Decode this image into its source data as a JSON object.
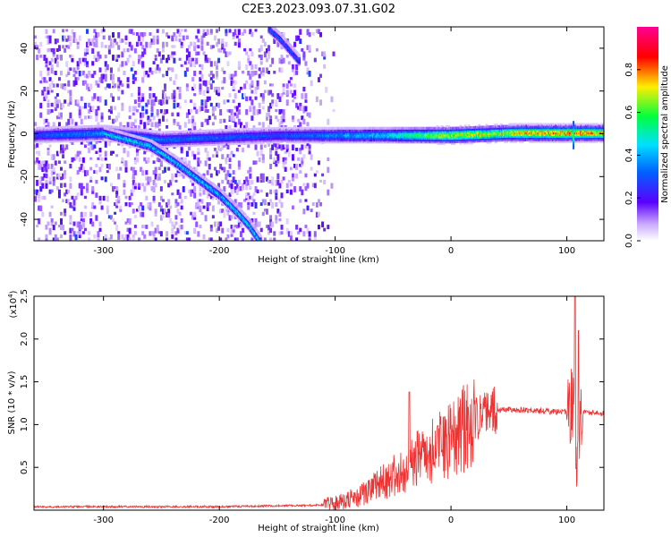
{
  "figure_title": "C2E3.2023.093.07.31.G02",
  "chart_data": [
    {
      "type": "heatmap",
      "title": "C2E3.2023.093.07.31.G02",
      "xlabel": "Height of straight line (km)",
      "ylabel": "Frequency (Hz)",
      "xlim": [
        -360,
        132
      ],
      "ylim": [
        -50,
        50
      ],
      "x_ticks": [
        -300,
        -200,
        -100,
        0,
        100
      ],
      "x_tick_labels": [
        "-300",
        "-200",
        "-100",
        "0",
        "100"
      ],
      "y_ticks": [
        -40,
        -20,
        0,
        20,
        40
      ],
      "y_tick_labels": [
        "-40",
        "-20",
        "0",
        "20",
        "40"
      ],
      "colorbar": {
        "label": "Normalized spectral amplitude",
        "range": [
          0,
          1
        ],
        "ticks": [
          0,
          0.2,
          0.4,
          0.6,
          0.8
        ],
        "tick_labels": [
          "0.0",
          "0.2",
          "0.4",
          "0.6",
          "0.8"
        ],
        "colormap": [
          "#ffffff",
          "#5a00ff",
          "#00c8ff",
          "#00ff40",
          "#ffee00",
          "#ff0000",
          "#ff00aa"
        ]
      },
      "features": {
        "main_line": [
          [
            -360,
            0
          ],
          [
            -300,
            1
          ],
          [
            -250,
            -2
          ],
          [
            -200,
            -1
          ],
          [
            -150,
            0
          ],
          [
            -100,
            0
          ],
          [
            -50,
            0
          ],
          [
            0,
            0
          ],
          [
            50,
            1
          ],
          [
            100,
            1
          ],
          [
            132,
            1
          ]
        ],
        "main_line_amplitude": [
          [
            -360,
            0.3
          ],
          [
            -300,
            0.4
          ],
          [
            -250,
            0.35
          ],
          [
            -150,
            0.3
          ],
          [
            -100,
            0.4
          ],
          [
            -60,
            0.45
          ],
          [
            -30,
            0.6
          ],
          [
            0,
            0.75
          ],
          [
            40,
            0.7
          ],
          [
            60,
            0.8
          ],
          [
            100,
            0.85
          ],
          [
            132,
            0.8
          ]
        ],
        "descending_track": [
          [
            -300,
            1
          ],
          [
            -280,
            -2
          ],
          [
            -260,
            -5
          ],
          [
            -240,
            -12
          ],
          [
            -220,
            -20
          ],
          [
            -200,
            -28
          ],
          [
            -185,
            -36
          ],
          [
            -175,
            -42
          ],
          [
            -165,
            -50
          ]
        ],
        "upper_track": [
          [
            -158,
            50
          ],
          [
            -148,
            45
          ],
          [
            -140,
            40
          ],
          [
            -132,
            35
          ]
        ],
        "spike_at_km": 105
      }
    },
    {
      "type": "line",
      "xlabel": "Height of straight line (km)",
      "ylabel": "SNR (10 * v/v)",
      "y_scale_label": "(x10",
      "y_scale_exponent": "4",
      "xlim": [
        -360,
        132
      ],
      "ylim": [
        0,
        2.5
      ],
      "x_ticks": [
        -300,
        -200,
        -100,
        0,
        100
      ],
      "x_tick_labels": [
        "-300",
        "-200",
        "-100",
        "0",
        "100"
      ],
      "y_ticks": [
        0.5,
        1.0,
        1.5,
        2.0,
        2.5
      ],
      "y_tick_labels": [
        "0.5",
        "1.0",
        "1.5",
        "2.0",
        "2.5"
      ],
      "line_color": "#ee3333",
      "envelope": [
        [
          -360,
          0.04
        ],
        [
          -200,
          0.04
        ],
        [
          -110,
          0.06
        ],
        [
          -80,
          0.15
        ],
        [
          -50,
          0.4
        ],
        [
          -30,
          0.6
        ],
        [
          -10,
          0.75
        ],
        [
          10,
          0.95
        ],
        [
          30,
          1.15
        ],
        [
          50,
          1.18
        ],
        [
          90,
          1.15
        ],
        [
          100,
          1.15
        ],
        [
          106,
          1.3
        ],
        [
          108,
          0.45
        ],
        [
          112,
          1.15
        ],
        [
          132,
          1.13
        ]
      ],
      "peaks": [
        [
          -36,
          1.38
        ],
        [
          107,
          2.55
        ],
        [
          110,
          2.1
        ]
      ]
    }
  ]
}
